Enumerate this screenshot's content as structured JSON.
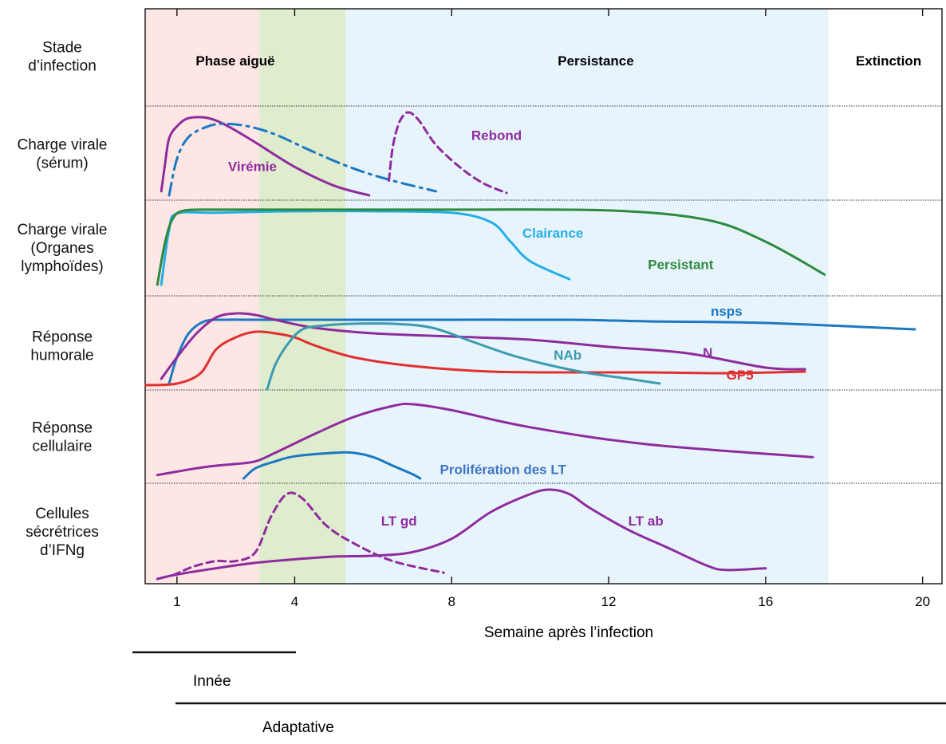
{
  "chart_data": {
    "type": "line",
    "title": "",
    "xlabel": "Semaine après l’infection",
    "ylabel": "",
    "xlim": [
      0.2,
      20.3
    ],
    "xticks": [
      1,
      4,
      8,
      12,
      16,
      20
    ],
    "grid": false,
    "phases": [
      {
        "label": "Phase aiguë",
        "start": 0.2,
        "end": 3.1,
        "color": "#fde6e4"
      },
      {
        "label": "",
        "start": 3.1,
        "end": 5.3,
        "color": "#dfeccd"
      },
      {
        "label": "Persistance",
        "start": 5.3,
        "end": 17.6,
        "color": "#e8f4fc"
      },
      {
        "label": "Extinction",
        "start": 17.6,
        "end": 20.3,
        "color": "#ffffff"
      }
    ],
    "rows": [
      {
        "label": [
          "Stade",
          "d’infection"
        ]
      },
      {
        "label": [
          "Charge virale",
          "(sérum)"
        ]
      },
      {
        "label": [
          "Charge virale",
          "(Organes",
          "lymphoïdes)"
        ]
      },
      {
        "label": [
          "Réponse",
          "humorale"
        ]
      },
      {
        "label": [
          "Réponse",
          "cellulaire"
        ]
      },
      {
        "label": [
          "Cellules",
          "sécrétrices",
          "d’IFNg"
        ]
      }
    ],
    "series": [
      {
        "name": "Virémie",
        "row": 1,
        "color": "#8e2c9e",
        "style": "solid",
        "x": [
          0.6,
          0.7,
          0.8,
          1.0,
          1.3,
          1.8,
          2.3,
          3.0,
          4.0,
          5.0,
          5.9
        ],
        "y": [
          0.05,
          0.4,
          0.7,
          0.85,
          0.95,
          0.95,
          0.85,
          0.65,
          0.35,
          0.12,
          0.0
        ]
      },
      {
        "name": "",
        "row": 1,
        "color": "#1b78c2",
        "style": "dashdot",
        "x": [
          0.8,
          1.0,
          1.3,
          1.8,
          2.2,
          2.8,
          3.5,
          4.5,
          5.5,
          6.5,
          7.6
        ],
        "y": [
          0.0,
          0.45,
          0.72,
          0.85,
          0.88,
          0.85,
          0.75,
          0.53,
          0.33,
          0.18,
          0.05
        ]
      },
      {
        "name": "Rebond",
        "row": 1,
        "color": "#8e2c9e",
        "style": "dashed",
        "x": [
          6.4,
          6.5,
          6.65,
          6.8,
          6.9,
          7.0,
          7.2,
          7.6,
          8.2,
          8.8,
          9.4
        ],
        "y": [
          0.18,
          0.6,
          0.88,
          1.0,
          1.02,
          1.0,
          0.9,
          0.62,
          0.35,
          0.15,
          0.03
        ]
      },
      {
        "name": "Clairance",
        "row": 2,
        "color": "#25aee8",
        "style": "solid",
        "x": [
          0.6,
          0.8,
          1.0,
          2.0,
          4.0,
          6.0,
          8.0,
          9.0,
          9.5,
          10.0,
          11.0
        ],
        "y": [
          0.0,
          0.7,
          0.91,
          0.92,
          0.94,
          0.94,
          0.92,
          0.8,
          0.55,
          0.3,
          0.07
        ]
      },
      {
        "name": "Persistant",
        "row": 2,
        "color": "#2e8b3e",
        "style": "solid",
        "x": [
          0.5,
          0.7,
          0.9,
          1.2,
          2.0,
          4.0,
          8.0,
          12.0,
          14.5,
          16.0,
          17.5
        ],
        "y": [
          0.0,
          0.55,
          0.85,
          0.95,
          0.96,
          0.96,
          0.96,
          0.95,
          0.83,
          0.55,
          0.13
        ]
      },
      {
        "name": "nsps",
        "row": 3,
        "color": "#1b78c2",
        "style": "solid",
        "x": [
          0.8,
          1.0,
          1.3,
          1.7,
          2.2,
          3.0,
          5.0,
          8.0,
          11.0,
          13.0,
          16.0,
          19.8
        ],
        "y": [
          0.02,
          0.35,
          0.65,
          0.8,
          0.82,
          0.82,
          0.82,
          0.82,
          0.82,
          0.8,
          0.78,
          0.7
        ]
      },
      {
        "name": "N",
        "row": 3,
        "color": "#8e2c9e",
        "style": "solid",
        "x": [
          0.6,
          1.0,
          1.5,
          2.0,
          2.5,
          3.0,
          3.5,
          4.5,
          6.0,
          8.0,
          10.0,
          12.0,
          14.0,
          16.0,
          17.0
        ],
        "y": [
          0.08,
          0.35,
          0.65,
          0.85,
          0.9,
          0.88,
          0.82,
          0.72,
          0.65,
          0.61,
          0.57,
          0.48,
          0.4,
          0.22,
          0.2
        ]
      },
      {
        "name": "GP5",
        "row": 3,
        "color": "#e03030",
        "style": "solid",
        "x": [
          0.2,
          1.0,
          1.6,
          2.0,
          2.5,
          3.0,
          3.5,
          4.0,
          4.5,
          5.5,
          7.0,
          9.0,
          11.0,
          13.0,
          15.0,
          17.0
        ],
        "y": [
          0.0,
          0.02,
          0.15,
          0.45,
          0.6,
          0.67,
          0.65,
          0.6,
          0.5,
          0.35,
          0.24,
          0.17,
          0.16,
          0.16,
          0.15,
          0.17
        ]
      },
      {
        "name": "NAb",
        "row": 3,
        "color": "#3c9ab0",
        "style": "solid",
        "x": [
          3.3,
          3.5,
          3.8,
          4.2,
          4.8,
          5.5,
          6.5,
          7.5,
          8.5,
          9.5,
          10.5,
          11.5,
          12.5,
          13.3
        ],
        "y": [
          -0.05,
          0.25,
          0.5,
          0.7,
          0.75,
          0.77,
          0.77,
          0.72,
          0.55,
          0.38,
          0.25,
          0.15,
          0.08,
          0.02
        ]
      },
      {
        "name": "",
        "row": 4,
        "color": "#8e2c9e",
        "style": "solid",
        "x": [
          0.5,
          1.0,
          1.5,
          2.0,
          2.5,
          3.0,
          3.5,
          4.5,
          5.5,
          6.5,
          7.0,
          8.0,
          10.0,
          13.0,
          17.2
        ],
        "y": [
          0.04,
          0.08,
          0.12,
          0.15,
          0.17,
          0.2,
          0.3,
          0.52,
          0.72,
          0.85,
          0.87,
          0.8,
          0.6,
          0.4,
          0.25
        ]
      },
      {
        "name": "Prolifération des LT",
        "row": 4,
        "color": "#1b78c2",
        "style": "solid",
        "x": [
          2.7,
          3.0,
          3.5,
          4.0,
          5.0,
          5.5,
          6.0,
          6.5,
          7.0,
          7.2
        ],
        "y": [
          0.0,
          0.12,
          0.2,
          0.26,
          0.3,
          0.3,
          0.25,
          0.15,
          0.05,
          0.0
        ]
      },
      {
        "name": "LT gd",
        "row": 5,
        "color": "#8e2c9e",
        "style": "dashed",
        "x": [
          0.9,
          1.2,
          1.5,
          2.0,
          2.5,
          3.0,
          3.4,
          3.8,
          4.2,
          4.8,
          5.5,
          6.5,
          7.8
        ],
        "y": [
          0.04,
          0.1,
          0.15,
          0.2,
          0.2,
          0.3,
          0.7,
          0.95,
          0.9,
          0.6,
          0.4,
          0.2,
          0.07
        ]
      },
      {
        "name": "LT ab",
        "row": 5,
        "color": "#8e2c9e",
        "style": "solid",
        "x": [
          0.5,
          1.0,
          2.0,
          3.0,
          4.0,
          5.0,
          6.0,
          7.0,
          8.0,
          9.0,
          10.0,
          10.5,
          11.0,
          11.5,
          12.5,
          13.5,
          14.5,
          15.0,
          16.0
        ],
        "y": [
          0.0,
          0.05,
          0.12,
          0.18,
          0.22,
          0.25,
          0.26,
          0.3,
          0.45,
          0.75,
          0.95,
          1.0,
          0.95,
          0.8,
          0.55,
          0.35,
          0.15,
          0.1,
          0.12
        ]
      }
    ],
    "annotations": [
      {
        "text": "Virémie",
        "x": 2.3,
        "row": 1,
        "y": 0.3,
        "color": "#8e2c9e"
      },
      {
        "text": "Rebond",
        "x": 8.5,
        "row": 1,
        "y": 0.68,
        "color": "#8e2c9e"
      },
      {
        "text": "Clairance",
        "x": 9.8,
        "row": 2,
        "y": 0.6,
        "color": "#25aee8"
      },
      {
        "text": "Persistant",
        "x": 13.0,
        "row": 2,
        "y": 0.2,
        "color": "#2e8b3e"
      },
      {
        "text": "nsps",
        "x": 14.6,
        "row": 3,
        "y": 0.87,
        "color": "#1b78c2"
      },
      {
        "text": "NAb",
        "x": 10.6,
        "row": 3,
        "y": 0.32,
        "color": "#3c9ab0"
      },
      {
        "text": "N",
        "x": 14.4,
        "row": 3,
        "y": 0.35,
        "color": "#8e2c9e"
      },
      {
        "text": "GP5",
        "x": 15.0,
        "row": 3,
        "y": 0.07,
        "color": "#e03030"
      },
      {
        "text": "Prolifération des LT",
        "x": 7.7,
        "row": 4,
        "y": 0.05,
        "color": "#3e74c4"
      },
      {
        "text": "LT gd",
        "x": 6.2,
        "row": 5,
        "y": 0.6,
        "color": "#8e2c9e"
      },
      {
        "text": "LT ab",
        "x": 12.5,
        "row": 5,
        "y": 0.6,
        "color": "#8e2c9e"
      }
    ],
    "immunity_legend": [
      {
        "label": "Innée"
      },
      {
        "label": "Adaptative"
      }
    ]
  }
}
